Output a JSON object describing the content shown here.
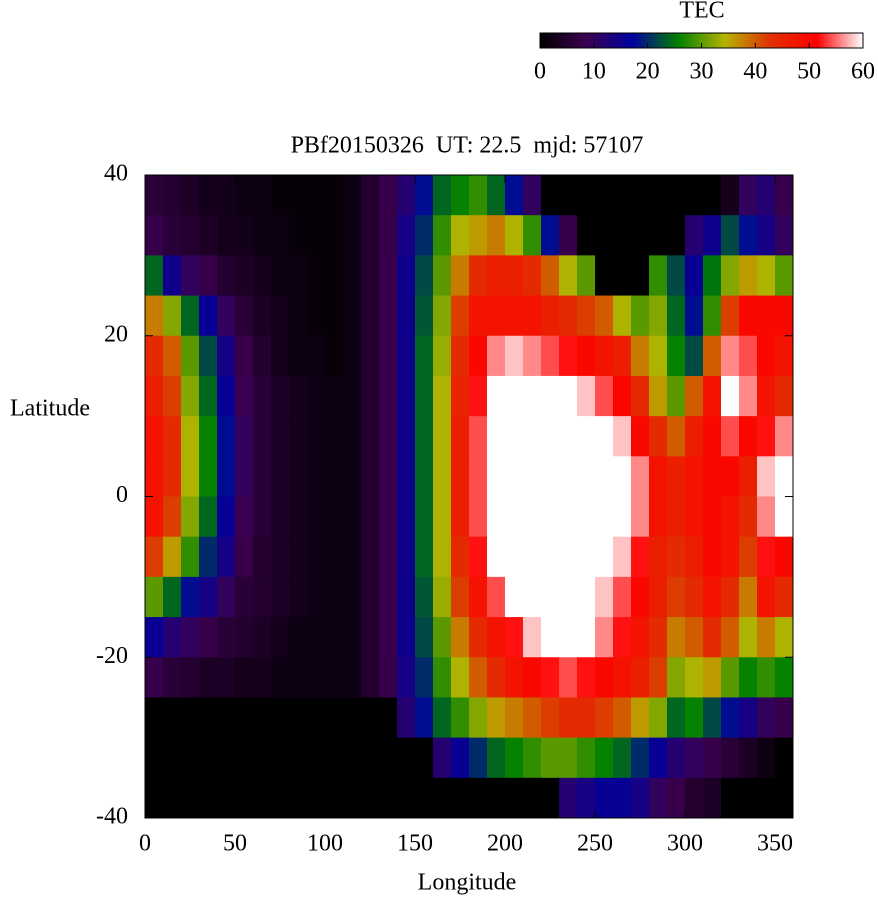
{
  "chart_data": {
    "type": "heatmap",
    "title": "PBf20150326  UT: 22.5  mjd: 57107",
    "xlabel": "Longitude",
    "ylabel": "Latitude",
    "colorbar_label": "TEC",
    "xlim": [
      0,
      360
    ],
    "ylim": [
      -40,
      40
    ],
    "xticks": [
      0,
      50,
      100,
      150,
      200,
      250,
      300,
      350
    ],
    "yticks": [
      -40,
      -20,
      0,
      20,
      40
    ],
    "clim": [
      0,
      60
    ],
    "cticks": [
      0,
      10,
      20,
      30,
      40,
      50,
      60
    ],
    "colormap": [
      "#000000",
      "#3c0050",
      "#0000a0",
      "#008000",
      "#b4b400",
      "#e03000",
      "#ff0000",
      "#ffffff"
    ],
    "x": [
      5,
      15,
      25,
      35,
      45,
      55,
      65,
      75,
      85,
      95,
      105,
      115,
      125,
      135,
      145,
      155,
      165,
      175,
      185,
      195,
      205,
      215,
      225,
      235,
      245,
      255,
      265,
      275,
      285,
      295,
      305,
      315,
      325,
      335,
      345,
      355
    ],
    "y": [
      37.5,
      32.5,
      27.5,
      22.5,
      17.5,
      12.5,
      7.5,
      2.5,
      -2.5,
      -7.5,
      -12.5,
      -17.5,
      -22.5,
      -27.5,
      -32.5,
      -37.5
    ],
    "z": [
      [
        6,
        5,
        4,
        3,
        3,
        2,
        2,
        1,
        1,
        1,
        1,
        2,
        5,
        8,
        12,
        18,
        24,
        26,
        28,
        24,
        18,
        10,
        0,
        0,
        0,
        0,
        0,
        0,
        0,
        0,
        0,
        0,
        3,
        10,
        12,
        8
      ],
      [
        8,
        6,
        5,
        4,
        3,
        3,
        2,
        2,
        1,
        1,
        1,
        2,
        5,
        8,
        14,
        20,
        28,
        34,
        36,
        38,
        34,
        28,
        18,
        8,
        0,
        0,
        0,
        0,
        0,
        0,
        12,
        15,
        22,
        18,
        14,
        10
      ],
      [
        24,
        15,
        10,
        8,
        5,
        4,
        3,
        2,
        2,
        1,
        1,
        2,
        5,
        8,
        15,
        22,
        30,
        38,
        44,
        46,
        46,
        44,
        40,
        34,
        30,
        0,
        0,
        0,
        28,
        22,
        16,
        25,
        32,
        36,
        34,
        30
      ],
      [
        38,
        32,
        24,
        16,
        10,
        6,
        4,
        3,
        2,
        1,
        1,
        2,
        5,
        8,
        15,
        23,
        32,
        42,
        48,
        48,
        48,
        48,
        46,
        44,
        42,
        40,
        34,
        30,
        32,
        24,
        18,
        28,
        42,
        50,
        50,
        50
      ],
      [
        44,
        40,
        30,
        22,
        14,
        8,
        5,
        3,
        2,
        2,
        1,
        2,
        5,
        8,
        15,
        24,
        33,
        44,
        50,
        56,
        58,
        56,
        54,
        52,
        50,
        48,
        46,
        38,
        34,
        26,
        22,
        40,
        56,
        54,
        50,
        48
      ],
      [
        46,
        42,
        32,
        24,
        16,
        9,
        6,
        4,
        3,
        2,
        2,
        2,
        5,
        8,
        15,
        24,
        34,
        45,
        52,
        60,
        60,
        60,
        60,
        60,
        58,
        54,
        50,
        44,
        36,
        30,
        40,
        48,
        60,
        56,
        48,
        44
      ],
      [
        48,
        44,
        34,
        26,
        18,
        10,
        6,
        4,
        3,
        2,
        2,
        2,
        5,
        8,
        15,
        24,
        34,
        46,
        54,
        60,
        60,
        60,
        60,
        60,
        60,
        60,
        58,
        50,
        44,
        40,
        46,
        50,
        54,
        50,
        52,
        56
      ],
      [
        48,
        44,
        34,
        26,
        18,
        10,
        6,
        4,
        3,
        2,
        2,
        2,
        5,
        8,
        15,
        24,
        34,
        46,
        54,
        60,
        60,
        60,
        60,
        60,
        60,
        60,
        60,
        56,
        48,
        46,
        48,
        50,
        50,
        46,
        58,
        60
      ],
      [
        48,
        42,
        32,
        24,
        16,
        9,
        6,
        4,
        3,
        2,
        2,
        2,
        5,
        8,
        15,
        24,
        34,
        46,
        54,
        60,
        60,
        60,
        60,
        60,
        60,
        60,
        60,
        56,
        48,
        46,
        48,
        50,
        48,
        44,
        56,
        60
      ],
      [
        42,
        36,
        28,
        20,
        14,
        8,
        5,
        4,
        3,
        2,
        2,
        2,
        5,
        8,
        15,
        24,
        34,
        44,
        52,
        60,
        60,
        60,
        60,
        60,
        60,
        60,
        58,
        52,
        46,
        44,
        46,
        50,
        48,
        42,
        52,
        50
      ],
      [
        30,
        24,
        18,
        14,
        10,
        6,
        5,
        4,
        3,
        2,
        2,
        2,
        5,
        8,
        15,
        23,
        33,
        42,
        48,
        54,
        60,
        60,
        60,
        60,
        60,
        58,
        54,
        50,
        46,
        42,
        44,
        48,
        44,
        38,
        48,
        44
      ],
      [
        16,
        12,
        10,
        8,
        6,
        5,
        4,
        3,
        2,
        2,
        2,
        2,
        5,
        8,
        15,
        22,
        30,
        38,
        44,
        48,
        52,
        58,
        60,
        60,
        60,
        56,
        52,
        48,
        44,
        38,
        40,
        44,
        40,
        34,
        38,
        34
      ],
      [
        8,
        6,
        5,
        4,
        4,
        3,
        3,
        2,
        2,
        2,
        2,
        2,
        5,
        8,
        14,
        20,
        28,
        34,
        40,
        44,
        48,
        50,
        52,
        54,
        52,
        50,
        48,
        46,
        42,
        32,
        34,
        36,
        30,
        26,
        28,
        26
      ],
      [
        0,
        0,
        0,
        0,
        0,
        0,
        0,
        0,
        0,
        0,
        0,
        0,
        0,
        0,
        12,
        18,
        24,
        28,
        32,
        36,
        38,
        40,
        42,
        44,
        44,
        42,
        40,
        36,
        32,
        24,
        26,
        22,
        18,
        14,
        10,
        8
      ],
      [
        0,
        0,
        0,
        0,
        0,
        0,
        0,
        0,
        0,
        0,
        0,
        0,
        0,
        0,
        0,
        0,
        12,
        16,
        20,
        24,
        26,
        28,
        30,
        30,
        28,
        26,
        24,
        20,
        16,
        12,
        10,
        8,
        6,
        4,
        2,
        0
      ],
      [
        0,
        0,
        0,
        0,
        0,
        0,
        0,
        0,
        0,
        0,
        0,
        0,
        0,
        0,
        0,
        0,
        0,
        0,
        0,
        0,
        0,
        0,
        0,
        12,
        14,
        16,
        16,
        14,
        10,
        8,
        5,
        4,
        0,
        0,
        0,
        0
      ]
    ]
  }
}
